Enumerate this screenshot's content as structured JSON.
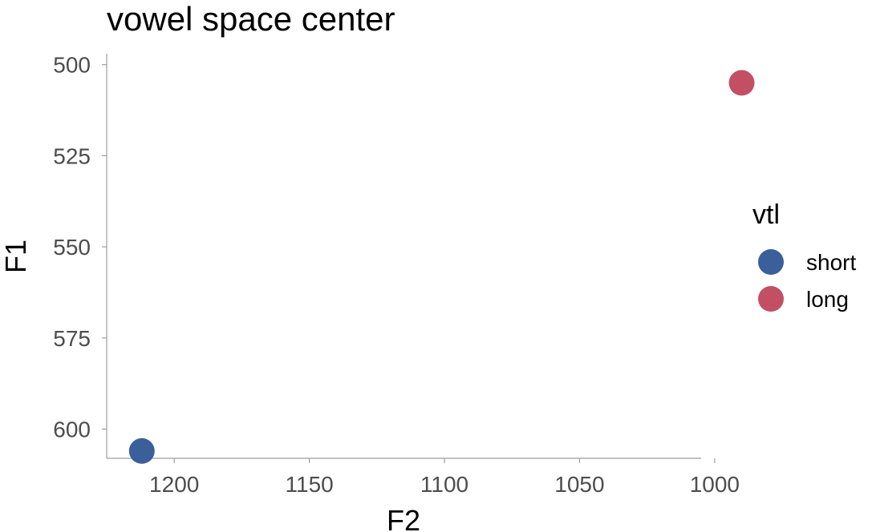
{
  "chart_data": {
    "type": "scatter",
    "title": "vowel space center",
    "xlabel": "F2",
    "ylabel": "F1",
    "x_reversed": true,
    "y_reversed": true,
    "xlim": [
      1225,
      1005
    ],
    "ylim": [
      497,
      608
    ],
    "x_ticks": [
      1200,
      1150,
      1100,
      1050,
      1000
    ],
    "x_tick_labels": [
      "1200",
      "1150",
      "1100",
      "1050",
      "1000"
    ],
    "y_ticks": [
      500,
      525,
      550,
      575,
      600
    ],
    "y_tick_labels": [
      "500",
      "525",
      "550",
      "575",
      "600"
    ],
    "grid": false,
    "legend": {
      "title": "vtl",
      "placement": "right"
    },
    "series": [
      {
        "name": "short",
        "color": "#3a5f9a",
        "points": [
          {
            "x": 1212,
            "y": 606
          }
        ]
      },
      {
        "name": "long",
        "color": "#c24f63",
        "points": [
          {
            "x": 990,
            "y": 505
          }
        ]
      }
    ]
  }
}
